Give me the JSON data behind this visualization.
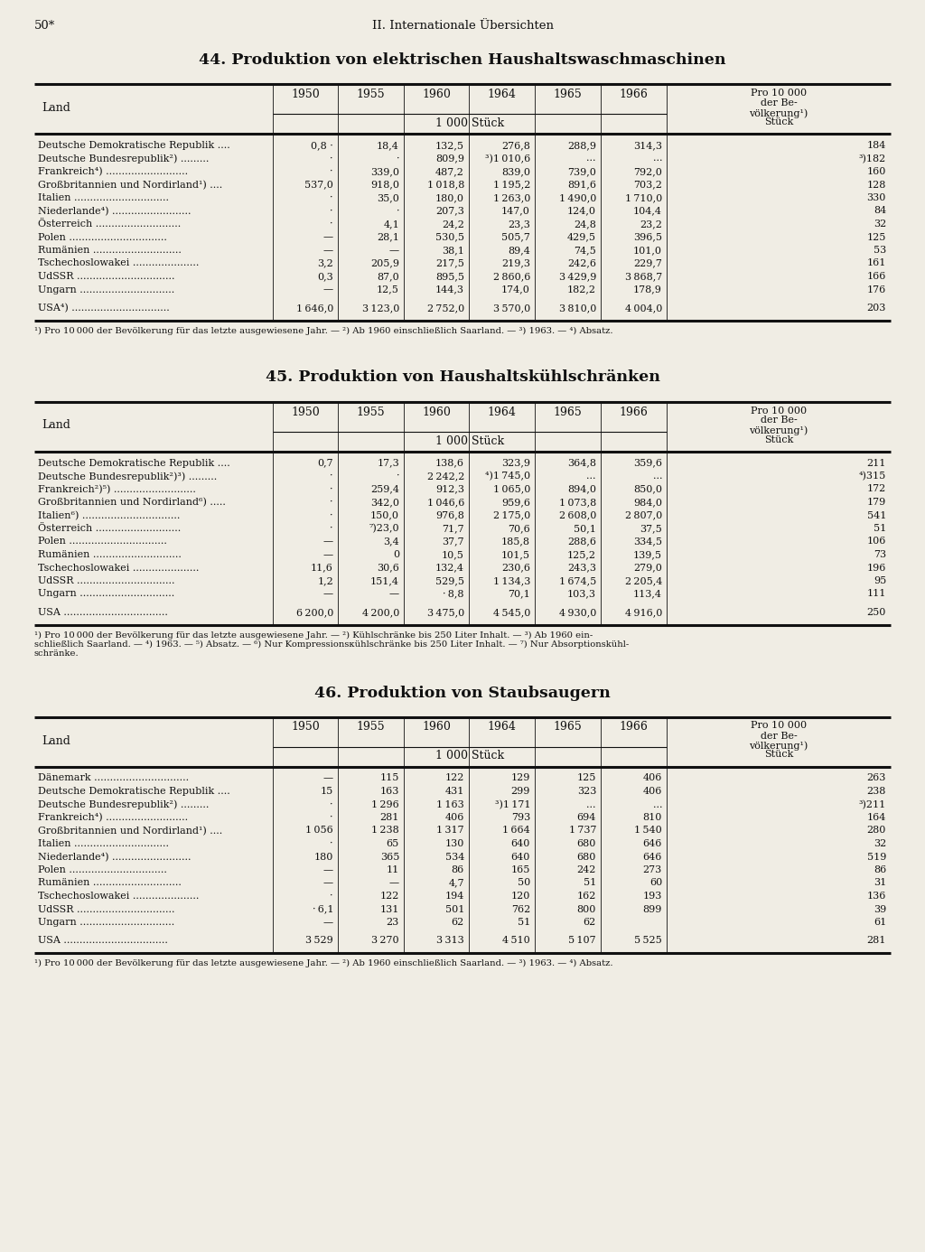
{
  "page_num": "50*",
  "chapter": "II. Internationale Übersichten",
  "bg_color": "#f0ede4",
  "tables": [
    {
      "title": "44. Produktion von elektrischen Haushaltswaschmaschinen",
      "unit": "1 000 Stück",
      "years": [
        "1950",
        "1955",
        "1960",
        "1964",
        "1965",
        "1966"
      ],
      "rows": [
        [
          "Deutsche Demokratische Republik ....",
          "0,8 ·",
          "18,4",
          "132,5",
          "276,8",
          "288,9",
          "314,3",
          "184"
        ],
        [
          "Deutsche Bundesrepublik²) .........",
          "·",
          "·",
          "809,9",
          "³)1 010,6",
          "...",
          "...",
          "³)182"
        ],
        [
          "Frankreich⁴) ..........................",
          "·",
          "339,0",
          "487,2",
          "839,0",
          "739,0",
          "792,0",
          "160"
        ],
        [
          "Großbritannien und Nordirland¹) ....",
          "537,0",
          "918,0",
          "1 018,8",
          "1 195,2",
          "891,6",
          "703,2",
          "128"
        ],
        [
          "Italien ..............................",
          "·",
          "35,0",
          "180,0",
          "1 263,0",
          "1 490,0",
          "1 710,0",
          "330"
        ],
        [
          "Niederlande⁴) .........................",
          "·",
          "·",
          "207,3",
          "147,0",
          "124,0",
          "104,4",
          "84"
        ],
        [
          "Österreich ...........................",
          "·",
          "4,1",
          "24,2",
          "23,3",
          "24,8",
          "23,2",
          "32"
        ],
        [
          "Polen ...............................",
          "—",
          "28,1",
          "530,5",
          "505,7",
          "429,5",
          "396,5",
          "125"
        ],
        [
          "Rumänien ............................",
          "—",
          "—",
          "38,1",
          "89,4",
          "74,5",
          "101,0",
          "53"
        ],
        [
          "Tschechoslowakei .....................",
          "3,2",
          "205,9",
          "217,5",
          "219,3",
          "242,6",
          "229,7",
          "161"
        ],
        [
          "UdSSR ...............................",
          "0,3",
          "87,0",
          "895,5",
          "2 860,6",
          "3 429,9",
          "3 868,7",
          "166"
        ],
        [
          "Ungarn ..............................",
          "—",
          "12,5",
          "144,3",
          "174,0",
          "182,2",
          "178,9",
          "176"
        ],
        [
          "",
          "",
          "",
          "",
          "",
          "",
          "",
          ""
        ],
        [
          "USA⁴) ...............................",
          "1 646,0",
          "3 123,0",
          "2 752,0",
          "3 570,0",
          "3 810,0",
          "4 004,0",
          "203"
        ]
      ],
      "footnote": "¹) Pro 10 000 der Bevölkerung für das letzte ausgewiesene Jahr. — ²) Ab 1960 einschließlich Saarland. — ³) 1963. — ⁴) Absatz."
    },
    {
      "title": "45. Produktion von Haushaltsкühlschränken",
      "unit": "1 000 Stück",
      "years": [
        "1950",
        "1955",
        "1960",
        "1964",
        "1965",
        "1966"
      ],
      "rows": [
        [
          "Deutsche Demokratische Republik ....",
          "0,7",
          "17,3",
          "138,6",
          "323,9",
          "364,8",
          "359,6",
          "211"
        ],
        [
          "Deutsche Bundesrepublik²)³) .........",
          "·",
          "·",
          "2 242,2",
          "⁴)1 745,0",
          "...",
          "...",
          "⁴)315"
        ],
        [
          "Frankreich²)⁵) ..........................",
          "·",
          "259,4",
          "912,3",
          "1 065,0",
          "894,0",
          "850,0",
          "172"
        ],
        [
          "Großbritannien und Nordirland⁶) .....",
          "·",
          "342,0",
          "1 046,6",
          "959,6",
          "1 073,8",
          "984,0",
          "179"
        ],
        [
          "Italien⁶) ...............................",
          "·",
          "150,0",
          "976,8",
          "2 175,0",
          "2 608,0",
          "2 807,0",
          "541"
        ],
        [
          "Österreich ...........................",
          "·",
          "⁷)23,0",
          "71,7",
          "70,6",
          "50,1",
          "37,5",
          "51"
        ],
        [
          "Polen ...............................",
          "—",
          "3,4",
          "37,7",
          "185,8",
          "288,6",
          "334,5",
          "106"
        ],
        [
          "Rumänien ............................",
          "—",
          "0",
          "10,5",
          "101,5",
          "125,2",
          "139,5",
          "73"
        ],
        [
          "Tschechoslowakei .....................",
          "11,6",
          "30,6",
          "132,4",
          "230,6",
          "243,3",
          "279,0",
          "196"
        ],
        [
          "UdSSR ...............................",
          "1,2",
          "151,4",
          "529,5",
          "1 134,3",
          "1 674,5",
          "2 205,4",
          "95"
        ],
        [
          "Ungarn ..............................",
          "—",
          "—",
          "· 8,8",
          "70,1",
          "103,3",
          "113,4",
          "111"
        ],
        [
          "",
          "",
          "",
          "",
          "",
          "",
          "",
          ""
        ],
        [
          "USA .................................",
          "6 200,0",
          "4 200,0",
          "3 475,0",
          "4 545,0",
          "4 930,0",
          "4 916,0",
          "250"
        ]
      ],
      "footnote": "¹) Pro 10 000 der Bevölkerung für das letzte ausgewiesene Jahr. — ²) Kühlschränke bis 250 Liter Inhalt. — ³) Ab 1960 ein-\nschließlich Saarland. — ⁴) 1963. — ⁵) Absatz. — ⁶) Nur Kompressionsкühlschränke bis 250 Liter Inhalt. — ⁷) Nur Absorptionskühl-\nschränke."
    },
    {
      "title": "46. Produktion von Staubsaugern",
      "unit": "1 000 Stück",
      "years": [
        "1950",
        "1955",
        "1960",
        "1964",
        "1965",
        "1966"
      ],
      "rows": [
        [
          "Dänemark ..............................",
          "—",
          "115",
          "122",
          "129",
          "125",
          "406",
          "263"
        ],
        [
          "Deutsche Demokratische Republik ....",
          "15",
          "163",
          "431",
          "299",
          "323",
          "406",
          "238"
        ],
        [
          "Deutsche Bundesrepublik²) .........",
          "·",
          "1 296",
          "1 163",
          "³)1 171",
          "...",
          "...",
          "³)211"
        ],
        [
          "Frankreich⁴) ..........................",
          "·",
          "281",
          "406",
          "793",
          "694",
          "810",
          "164"
        ],
        [
          "Großbritannien und Nordirland¹) ....",
          "1 056",
          "1 238",
          "1 317",
          "1 664",
          "1 737",
          "1 540",
          "280"
        ],
        [
          "Italien ..............................",
          "·",
          "65",
          "130",
          "640",
          "680",
          "646",
          "32"
        ],
        [
          "Niederlande⁴) .........................",
          "180",
          "365",
          "534",
          "640",
          "680",
          "646",
          "519"
        ],
        [
          "Polen ...............................",
          "—",
          "11",
          "86",
          "165",
          "242",
          "273",
          "86"
        ],
        [
          "Rumänien ............................",
          "—",
          "—",
          "4,7",
          "50",
          "51",
          "60",
          "31"
        ],
        [
          "Tschechoslowakei .....................",
          "·",
          "122",
          "194",
          "120",
          "162",
          "193",
          "136"
        ],
        [
          "UdSSR ...............................",
          "· 6,1",
          "131",
          "501",
          "762",
          "800",
          "899",
          "39"
        ],
        [
          "Ungarn ..............................",
          "—",
          "23",
          "62",
          "51",
          "62",
          "",
          "61"
        ],
        [
          "",
          "",
          "",
          "",
          "",
          "",
          "",
          ""
        ],
        [
          "USA .................................",
          "3 529",
          "3 270",
          "3 313",
          "4 510",
          "5 107",
          "5 525",
          "281"
        ]
      ],
      "footnote": "¹) Pro 10 000 der Bevölkerung für das letzte ausgewiesene Jahr. — ²) Ab 1960 einschließlich Saarland. — ³) 1963. — ⁴) Absatz."
    }
  ]
}
